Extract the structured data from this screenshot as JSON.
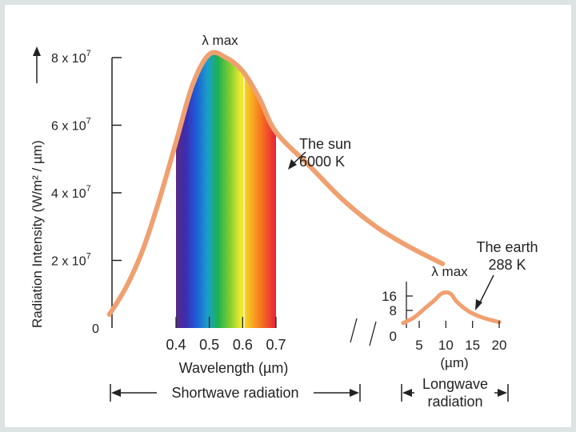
{
  "chart_data": [
    {
      "type": "line",
      "title": "",
      "ylabel": "Radiation Intensity (W/m² / µm)",
      "xlabel": "Wavelength (µm)",
      "y_ticks": [
        {
          "value": 0,
          "label": "0"
        },
        {
          "value": 20000000,
          "label": "2 x 10",
          "exp": "7"
        },
        {
          "value": 40000000,
          "label": "4 x 10",
          "exp": "7"
        },
        {
          "value": 60000000,
          "label": "6 x 10",
          "exp": "7"
        },
        {
          "value": 80000000,
          "label": "8 x 10",
          "exp": "7"
        }
      ],
      "x_ticks": [
        "0.4",
        "0.5",
        "0.6",
        "0.7"
      ],
      "peak_label": "λ max",
      "series": [
        {
          "name": "The sun 6000 K",
          "color": "#f0a070",
          "x": [
            0.2,
            0.25,
            0.3,
            0.35,
            0.4,
            0.45,
            0.5,
            0.55,
            0.6,
            0.65,
            0.7,
            0.8,
            0.9,
            1.0,
            1.1,
            1.2
          ],
          "y": [
            4000000,
            12000000,
            23000000,
            38000000,
            55000000,
            72000000,
            81000000,
            80000000,
            76000000,
            68000000,
            58000000,
            48000000,
            38000000,
            30000000,
            24000000,
            19000000
          ]
        }
      ],
      "sun_label_line1": "The sun",
      "sun_label_line2": "6000 K",
      "visible_band": [
        0.4,
        0.7
      ],
      "band_label": "Shortwave radiation"
    },
    {
      "type": "line",
      "title": "",
      "xlabel": "(µm)",
      "y_ticks": [
        {
          "value": 0,
          "label": "0"
        },
        {
          "value": 8,
          "label": "8"
        },
        {
          "value": 16,
          "label": "16"
        }
      ],
      "x_ticks": [
        "5",
        "10",
        "15",
        "20"
      ],
      "peak_label": "λ max",
      "series": [
        {
          "name": "The earth 288 K",
          "color": "#f0a070",
          "x": [
            2,
            4,
            6,
            8,
            9,
            10,
            11,
            12,
            14,
            16,
            18,
            20
          ],
          "y": [
            1,
            4,
            9,
            14,
            17,
            18,
            17,
            13,
            8,
            5,
            3,
            1.5
          ]
        }
      ],
      "earth_label_line1": "The earth",
      "earth_label_line2": "288 K",
      "band_label_line1": "Longwave",
      "band_label_line2": "radiation"
    }
  ],
  "colors": {
    "curve": "#f0a070",
    "axis": "#222222",
    "frame": "#dde2e2"
  }
}
